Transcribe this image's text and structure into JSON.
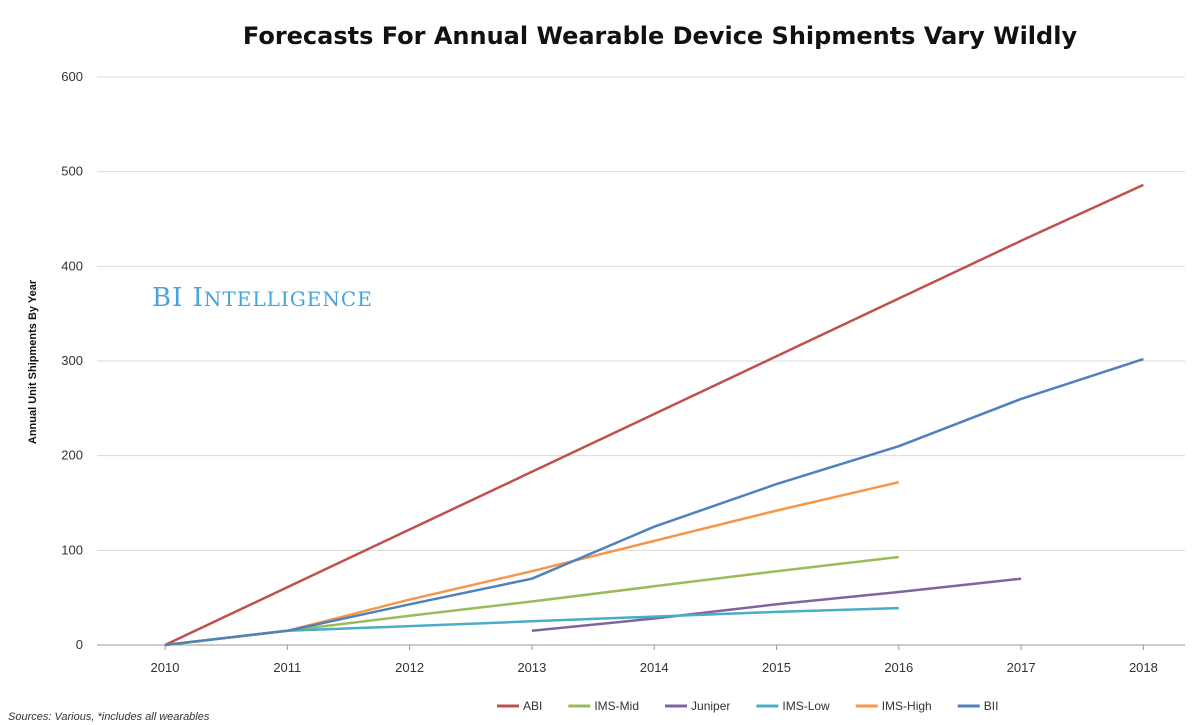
{
  "chart_data": {
    "type": "line",
    "title": "Forecasts For Annual Wearable Device Shipments Vary Wildly",
    "ylabel": "Annual Unit Shipments By Year",
    "xlabel": "",
    "x": [
      2010,
      2011,
      2012,
      2013,
      2014,
      2015,
      2016,
      2017,
      2018
    ],
    "ylim": [
      0,
      600
    ],
    "yticks": [
      0,
      100,
      200,
      300,
      400,
      500,
      600
    ],
    "grid": true,
    "legend_position": "bottom",
    "series": [
      {
        "name": "ABI",
        "color": "#c0504d",
        "x": [
          2010,
          2011,
          2012,
          2013,
          2014,
          2015,
          2016,
          2017,
          2018
        ],
        "values": [
          0,
          61,
          122,
          183,
          244,
          305,
          366,
          427,
          486
        ]
      },
      {
        "name": "IMS-Mid",
        "color": "#9bbb59",
        "x": [
          2010,
          2011,
          2012,
          2013,
          2014,
          2015,
          2016
        ],
        "values": [
          0,
          15,
          31,
          46,
          62,
          78,
          93
        ]
      },
      {
        "name": "Juniper",
        "color": "#8064a2",
        "x": [
          2013,
          2014,
          2015,
          2016,
          2017
        ],
        "values": [
          15,
          28,
          43,
          56,
          70
        ]
      },
      {
        "name": "IMS-Low",
        "color": "#4bacc6",
        "x": [
          2010,
          2011,
          2012,
          2013,
          2014,
          2015,
          2016
        ],
        "values": [
          0,
          15,
          20,
          25,
          30,
          35,
          39
        ]
      },
      {
        "name": "IMS-High",
        "color": "#f79646",
        "x": [
          2010,
          2011,
          2012,
          2013,
          2014,
          2015,
          2016
        ],
        "values": [
          0,
          15,
          48,
          78,
          110,
          142,
          172
        ]
      },
      {
        "name": "BII",
        "color": "#4f81bd",
        "x": [
          2010,
          2011,
          2012,
          2013,
          2014,
          2015,
          2016,
          2017,
          2018
        ],
        "values": [
          0,
          15,
          43,
          70,
          125,
          170,
          210,
          260,
          302
        ]
      }
    ]
  },
  "watermark": "BI Intelligence",
  "source_note": "Sources: Various, *includes all wearables"
}
